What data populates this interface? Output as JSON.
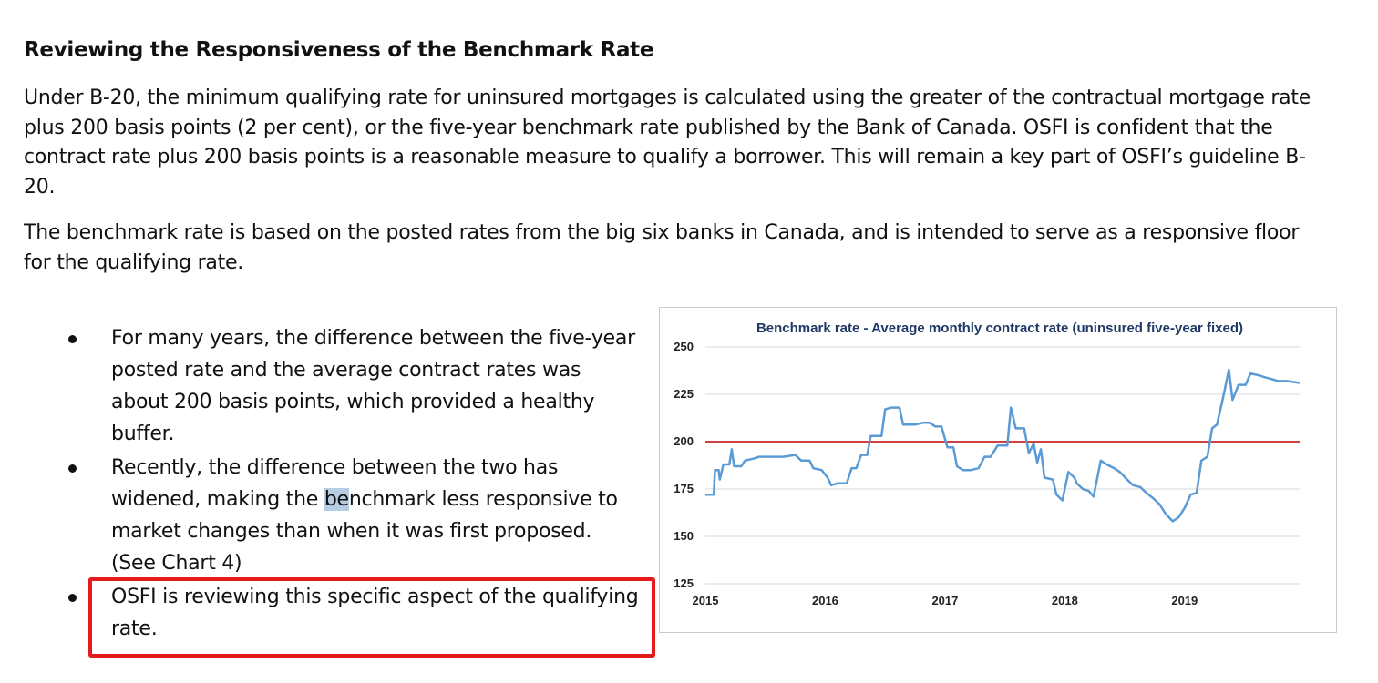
{
  "document": {
    "heading": "Reviewing the Responsiveness of the Benchmark Rate",
    "paragraphs": [
      "Under B-20, the minimum qualifying rate for uninsured mortgages is calculated using the greater of the contractual mortgage rate plus 200 basis points (2 per cent), or the five-year benchmark rate published by the Bank of Canada. OSFI is confident that the contract rate plus 200 basis points is a reasonable measure to qualify a borrower. This will remain a key part of OSFI’s guideline B-20.",
      "The benchmark rate is based on the posted rates from the big six banks in Canada, and is intended to serve as a responsive floor for the qualifying rate."
    ],
    "bullets": [
      "For many years, the difference between the five-year posted rate and the average contract rates was about 200 basis points, which provided a healthy buffer.",
      {
        "before": "Recently, the difference between the two has widened, making the ",
        "highlight": "be",
        "after": "nchmark less responsive to market changes than when it was first proposed. (See Chart 4)"
      },
      "OSFI is reviewing this specific aspect of the qualifying rate."
    ]
  },
  "colors": {
    "series_line": "#5b9bd5",
    "reference_line": "#c00000",
    "gridline": "#d9d9d9",
    "title": "#1f3864",
    "annotation_box": "#e41b1b",
    "selection_highlight": "#b7cde3"
  },
  "chart_data": {
    "type": "line",
    "title": "Benchmark rate - Average monthly contract rate (uninsured five-year fixed)",
    "xlabel": "",
    "ylabel": "",
    "ylim": [
      125,
      250
    ],
    "yticks": [
      125,
      150,
      175,
      200,
      225,
      250
    ],
    "xticks": [
      "2015",
      "2016",
      "2017",
      "2018",
      "2019"
    ],
    "xlim": [
      2015.0,
      2019.96
    ],
    "grid": true,
    "reference_line": 200,
    "series": [
      {
        "name": "",
        "points": [
          [
            2015.0,
            172
          ],
          [
            2015.07,
            172
          ],
          [
            2015.08,
            185
          ],
          [
            2015.11,
            185
          ],
          [
            2015.12,
            180
          ],
          [
            2015.15,
            188
          ],
          [
            2015.2,
            188
          ],
          [
            2015.22,
            196
          ],
          [
            2015.24,
            187
          ],
          [
            2015.3,
            187
          ],
          [
            2015.33,
            190
          ],
          [
            2015.4,
            191
          ],
          [
            2015.45,
            192
          ],
          [
            2015.55,
            192
          ],
          [
            2015.65,
            192
          ],
          [
            2015.75,
            193
          ],
          [
            2015.8,
            190
          ],
          [
            2015.87,
            190
          ],
          [
            2015.9,
            186
          ],
          [
            2015.97,
            185
          ],
          [
            2016.02,
            181
          ],
          [
            2016.05,
            177
          ],
          [
            2016.1,
            178
          ],
          [
            2016.18,
            178
          ],
          [
            2016.22,
            186
          ],
          [
            2016.26,
            186
          ],
          [
            2016.3,
            193
          ],
          [
            2016.35,
            193
          ],
          [
            2016.38,
            203
          ],
          [
            2016.47,
            203
          ],
          [
            2016.5,
            217
          ],
          [
            2016.55,
            218
          ],
          [
            2016.62,
            218
          ],
          [
            2016.65,
            209
          ],
          [
            2016.75,
            209
          ],
          [
            2016.82,
            210
          ],
          [
            2016.87,
            210
          ],
          [
            2016.92,
            208
          ],
          [
            2016.97,
            208
          ],
          [
            2017.02,
            197
          ],
          [
            2017.07,
            197
          ],
          [
            2017.1,
            187
          ],
          [
            2017.15,
            185
          ],
          [
            2017.22,
            185
          ],
          [
            2017.28,
            186
          ],
          [
            2017.33,
            192
          ],
          [
            2017.38,
            192
          ],
          [
            2017.44,
            198
          ],
          [
            2017.52,
            198
          ],
          [
            2017.55,
            218
          ],
          [
            2017.59,
            207
          ],
          [
            2017.66,
            207
          ],
          [
            2017.7,
            194
          ],
          [
            2017.74,
            199
          ],
          [
            2017.77,
            189
          ],
          [
            2017.8,
            196
          ],
          [
            2017.83,
            181
          ],
          [
            2017.9,
            180
          ],
          [
            2017.93,
            172
          ],
          [
            2017.98,
            169
          ],
          [
            2018.03,
            184
          ],
          [
            2018.08,
            181
          ],
          [
            2018.1,
            178
          ],
          [
            2018.15,
            175
          ],
          [
            2018.2,
            174
          ],
          [
            2018.24,
            171
          ],
          [
            2018.3,
            190
          ],
          [
            2018.35,
            188
          ],
          [
            2018.41,
            186
          ],
          [
            2018.46,
            184
          ],
          [
            2018.52,
            180
          ],
          [
            2018.57,
            177
          ],
          [
            2018.63,
            176
          ],
          [
            2018.68,
            173
          ],
          [
            2018.74,
            170
          ],
          [
            2018.79,
            167
          ],
          [
            2018.84,
            162
          ],
          [
            2018.9,
            158
          ],
          [
            2018.95,
            160
          ],
          [
            2019.0,
            165
          ],
          [
            2019.05,
            172
          ],
          [
            2019.1,
            173
          ],
          [
            2019.14,
            190
          ],
          [
            2019.19,
            192
          ],
          [
            2019.23,
            207
          ],
          [
            2019.27,
            209
          ],
          [
            2019.32,
            223
          ],
          [
            2019.37,
            238
          ],
          [
            2019.4,
            222
          ],
          [
            2019.45,
            230
          ],
          [
            2019.51,
            230
          ],
          [
            2019.55,
            236
          ],
          [
            2019.62,
            235
          ],
          [
            2019.67,
            234
          ],
          [
            2019.73,
            233
          ],
          [
            2019.78,
            232
          ],
          [
            2019.85,
            232
          ],
          [
            2019.96,
            231
          ]
        ]
      }
    ]
  }
}
